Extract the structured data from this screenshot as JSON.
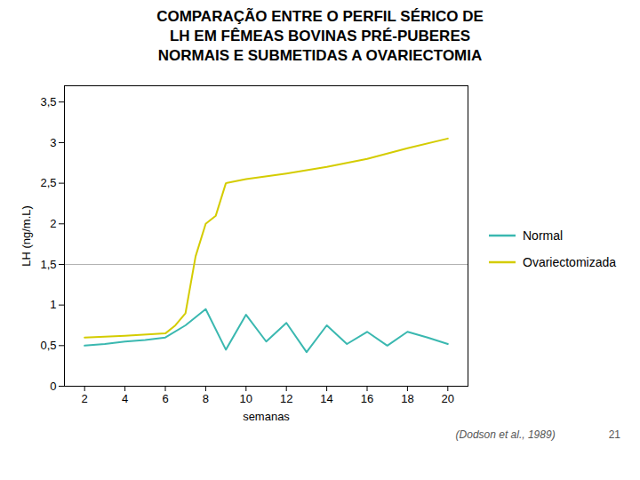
{
  "chart_data": {
    "type": "line",
    "title": "COMPARAÇÃO ENTRE O PERFIL SÉRICO DE\nLH EM FÊMEAS BOVINAS PRÉ-PUBERES\nNORMAIS E SUBMETIDAS A OVARIECTOMIA",
    "xlabel": "semanas",
    "ylabel": "LH (ng/m.L)",
    "series": [
      {
        "name": "Normal",
        "color": "#3ab8b0",
        "x": [
          2,
          3,
          4,
          5,
          6,
          7,
          8,
          9,
          10,
          11,
          12,
          13,
          14,
          15,
          16,
          17,
          18,
          19,
          20
        ],
        "values": [
          0.5,
          0.52,
          0.55,
          0.57,
          0.6,
          0.75,
          0.95,
          0.45,
          0.88,
          0.55,
          0.78,
          0.42,
          0.75,
          0.52,
          0.67,
          0.5,
          0.67,
          0.6,
          0.52
        ]
      },
      {
        "name": "Ovariectomizada",
        "color": "#d4cc00",
        "x": [
          2,
          4,
          6,
          6.5,
          7,
          7.5,
          8,
          8.5,
          9,
          10,
          12,
          14,
          16,
          18,
          20
        ],
        "values": [
          0.6,
          0.62,
          0.65,
          0.75,
          0.9,
          1.6,
          2.0,
          2.1,
          2.5,
          2.55,
          2.62,
          2.7,
          2.8,
          2.93,
          3.05
        ]
      }
    ],
    "hline": {
      "y": 1.5,
      "color": "#b0b0b0"
    },
    "xlim": [
      1,
      21
    ],
    "xticks": [
      2,
      4,
      6,
      8,
      10,
      12,
      14,
      16,
      18,
      20
    ],
    "ylim": [
      0,
      3.7
    ],
    "yticks": [
      0,
      {
        "value": 0.5,
        "label": "0,5"
      },
      1,
      {
        "value": 1.5,
        "label": "1,5"
      },
      2,
      {
        "value": 2.5,
        "label": "2,5"
      },
      3,
      {
        "value": 3.5,
        "label": "3,5"
      }
    ],
    "legend": "right",
    "grid": false,
    "annotations": [
      "(Dodson et al., 1989)",
      "21"
    ]
  }
}
